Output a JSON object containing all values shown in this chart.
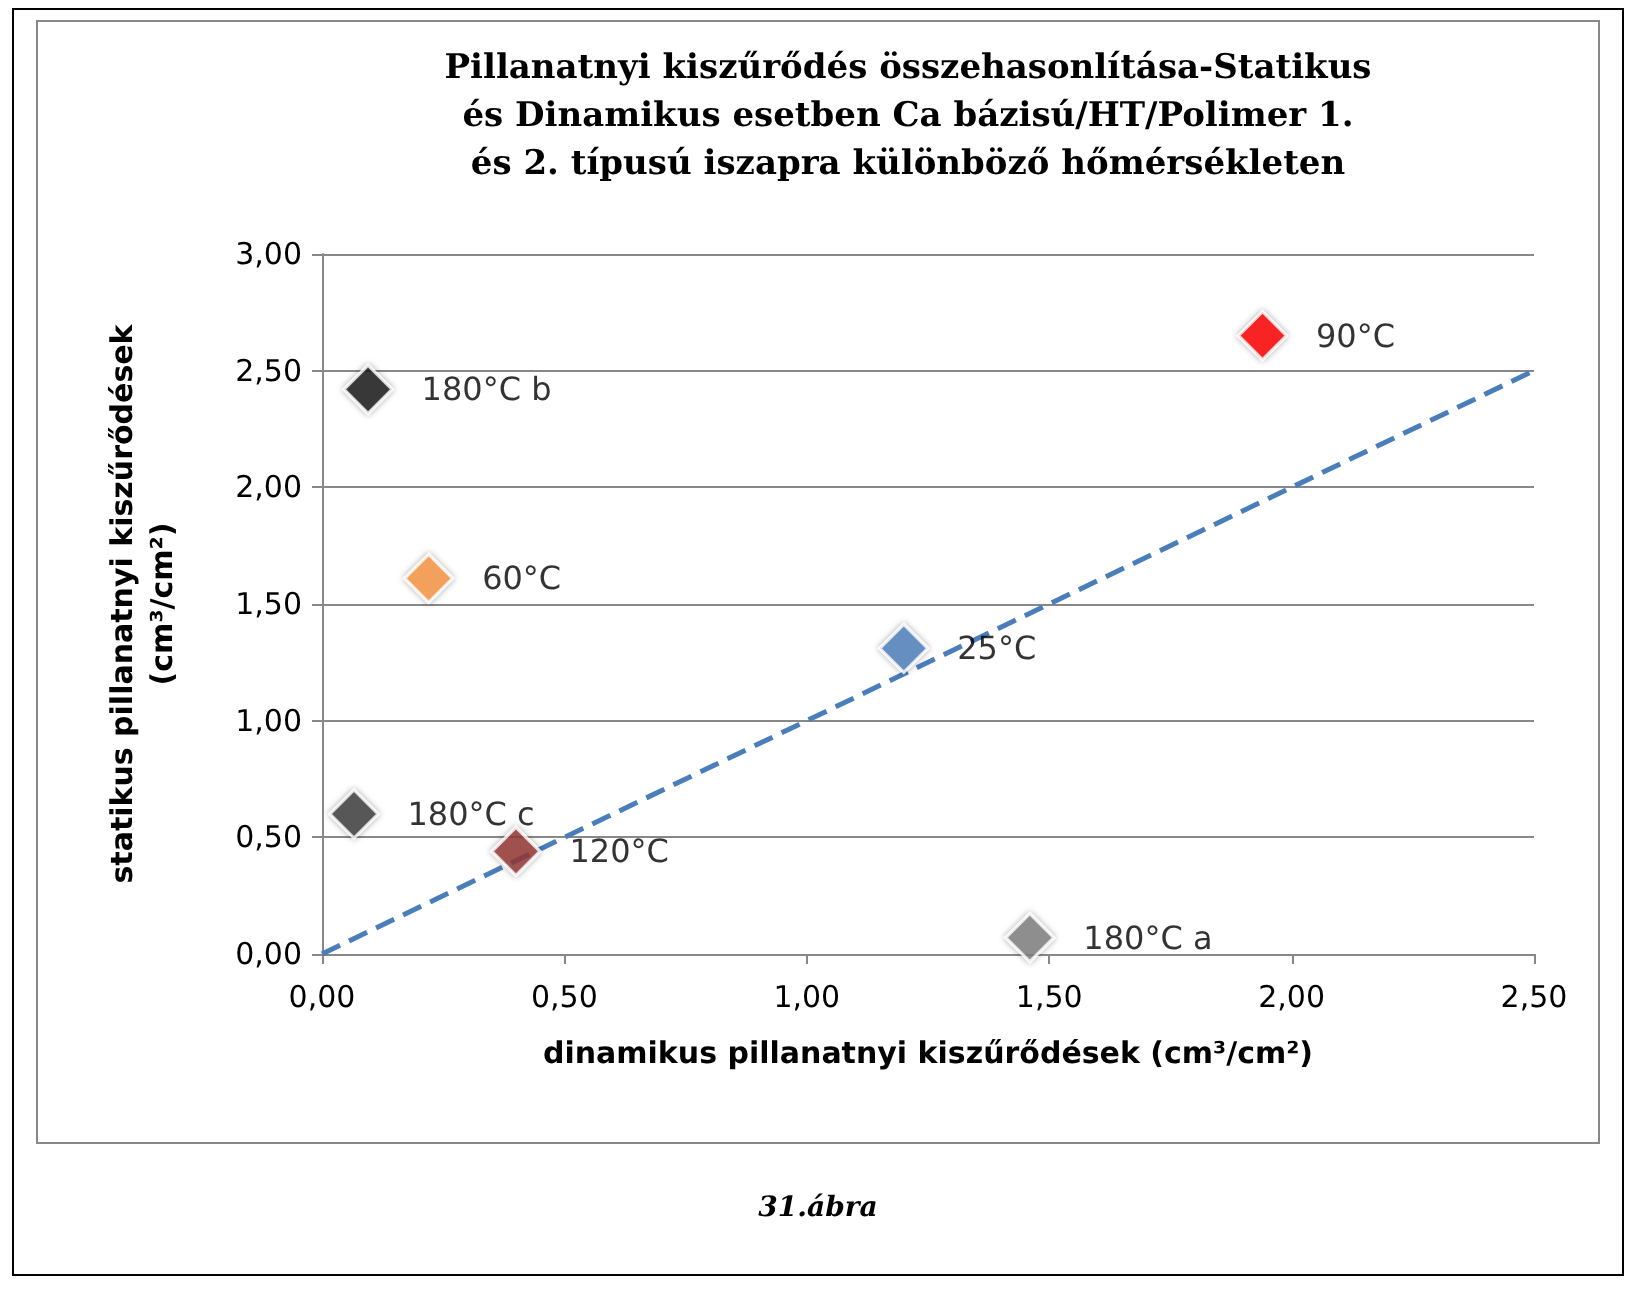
{
  "chart_data": {
    "type": "scatter",
    "title": "Pillanatnyi kiszűrődés összehasonlítása-Statikus\nés Dinamikus esetben Ca bázisú/HT/Polimer 1.\nés 2. típusú iszapra különböző hőmérsékleten",
    "xlabel": "dinamikus pillanatnyi kiszűrődések (cm³/cm²)",
    "ylabel": "statikus pillanatnyi kiszűrődések\n(cm³/cm²)",
    "annotations": [
      "31.ábra"
    ],
    "xlim": [
      0,
      2.5
    ],
    "xticks": [
      {
        "value": 0,
        "label": "0,00"
      },
      {
        "value": 0.5,
        "label": "0,50"
      },
      {
        "value": 1,
        "label": "1,00"
      },
      {
        "value": 1.5,
        "label": "1,50"
      },
      {
        "value": 2,
        "label": "2,00"
      },
      {
        "value": 2.5,
        "label": "2,50"
      }
    ],
    "ylim": [
      0,
      3
    ],
    "yticks": [
      {
        "value": 0,
        "label": "0,00"
      },
      {
        "value": 0.5,
        "label": "0,50"
      },
      {
        "value": 1,
        "label": "1,00"
      },
      {
        "value": 1.5,
        "label": "1,50"
      },
      {
        "value": 2,
        "label": "2,00"
      },
      {
        "value": 2.5,
        "label": "2,50"
      },
      {
        "value": 3,
        "label": "3,00"
      }
    ],
    "grid": "y",
    "legend": false,
    "marker": "diamond",
    "series": [
      {
        "name": "180°C b",
        "color": "#1a1a1a",
        "x": [
          0.095
        ],
        "values": [
          2.42
        ]
      },
      {
        "name": "90°C",
        "color": "#ff0000",
        "x": [
          1.94
        ],
        "values": [
          2.65
        ]
      },
      {
        "name": "60°C",
        "color": "#f79646",
        "x": [
          0.22
        ],
        "values": [
          1.61
        ]
      },
      {
        "name": "25°C",
        "color": "#4f81bd",
        "x": [
          1.2
        ],
        "values": [
          1.31
        ]
      },
      {
        "name": "180°C c",
        "color": "#404040",
        "x": [
          0.066
        ],
        "values": [
          0.6
        ]
      },
      {
        "name": "120°C",
        "color": "#953735",
        "x": [
          0.4
        ],
        "values": [
          0.44
        ]
      },
      {
        "name": "180°C a",
        "color": "#808080",
        "x": [
          1.46
        ],
        "values": [
          0.07
        ]
      },
      {
        "type": "line",
        "color": "#4a7ebb",
        "line_style": "dashed",
        "marker": "none",
        "x": [
          0,
          2.5
        ],
        "values": [
          0,
          2.5
        ]
      }
    ]
  }
}
